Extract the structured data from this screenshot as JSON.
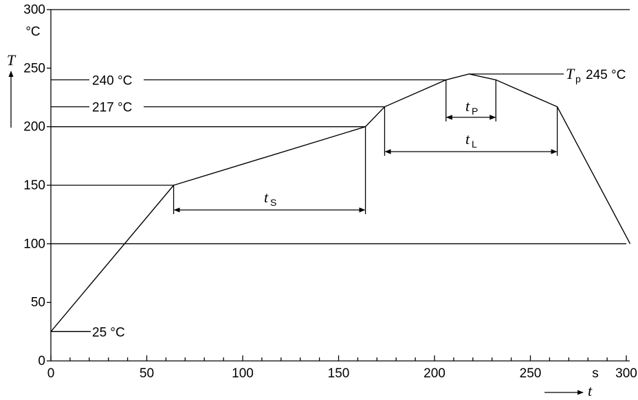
{
  "chart_data": {
    "type": "line",
    "title": "",
    "xlabel": "t",
    "x_unit": "s",
    "ylabel": "T",
    "y_unit": "°C",
    "xlim": [
      0,
      300
    ],
    "ylim": [
      0,
      300
    ],
    "x_ticks": [
      0,
      50,
      100,
      150,
      200,
      250,
      300
    ],
    "y_ticks": [
      0,
      50,
      100,
      150,
      200,
      250,
      300
    ],
    "grid": false,
    "series": [
      {
        "x": [
          0,
          64,
          164,
          174,
          206,
          218,
          232,
          264,
          302
        ],
        "y": [
          25,
          150,
          200,
          217,
          240,
          245,
          240,
          217,
          100
        ]
      }
    ],
    "reference_lines": [
      {
        "label": "240 °C",
        "y": 240
      },
      {
        "label": "217 °C",
        "y": 217
      },
      {
        "y": 200
      },
      {
        "y": 150
      },
      {
        "y": 100
      },
      {
        "label": "25 °C",
        "y": 25
      }
    ],
    "peak_label": {
      "symbol": "T",
      "subscript": "p",
      "value": "245 °C"
    },
    "intervals": [
      {
        "symbol": "t",
        "subscript": "S",
        "from": 64,
        "to": 164
      },
      {
        "symbol": "t",
        "subscript": "L",
        "from": 174,
        "to": 264
      },
      {
        "symbol": "t",
        "subscript": "P",
        "from": 206,
        "to": 232
      }
    ]
  }
}
